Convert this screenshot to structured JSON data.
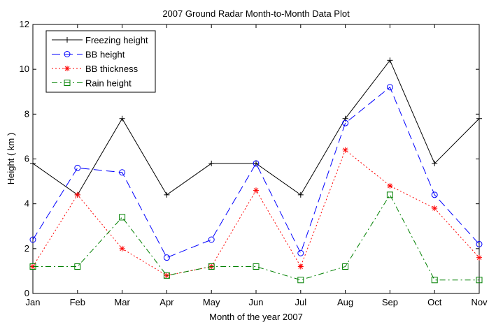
{
  "chart_data": {
    "type": "line",
    "title": "2007 Ground Radar Month-to-Month Data Plot",
    "xlabel": "Month of the year 2007",
    "ylabel": "Height ( km )",
    "categories": [
      "Jan",
      "Feb",
      "Mar",
      "Apr",
      "May",
      "Jun",
      "Jul",
      "Aug",
      "Sep",
      "Oct",
      "Nov"
    ],
    "ylim": [
      0,
      12
    ],
    "yticks": [
      "0",
      "2",
      "4",
      "6",
      "8",
      "10",
      "12"
    ],
    "grid": false,
    "legend_position": "top-left",
    "series": [
      {
        "name": "Freezing height",
        "color": "#000000",
        "marker": "plus",
        "dash": "solid",
        "values": [
          5.8,
          4.4,
          7.8,
          4.4,
          5.8,
          5.8,
          4.4,
          7.8,
          10.4,
          5.8,
          7.8
        ]
      },
      {
        "name": "BB height",
        "color": "#0000ff",
        "marker": "circle",
        "dash": "dashed",
        "values": [
          2.4,
          5.6,
          5.4,
          1.6,
          2.4,
          5.8,
          1.8,
          7.6,
          9.2,
          4.4,
          2.2
        ]
      },
      {
        "name": "BB thickness",
        "color": "#ff0000",
        "marker": "star",
        "dash": "dotted",
        "values": [
          1.2,
          4.4,
          2.0,
          0.8,
          1.2,
          4.6,
          1.2,
          6.4,
          4.8,
          3.8,
          1.6
        ]
      },
      {
        "name": "Rain height",
        "color": "#008000",
        "marker": "square",
        "dash": "dashdot",
        "values": [
          1.2,
          1.2,
          3.4,
          0.8,
          1.2,
          1.2,
          0.6,
          1.2,
          4.4,
          0.6,
          0.6
        ]
      }
    ]
  }
}
